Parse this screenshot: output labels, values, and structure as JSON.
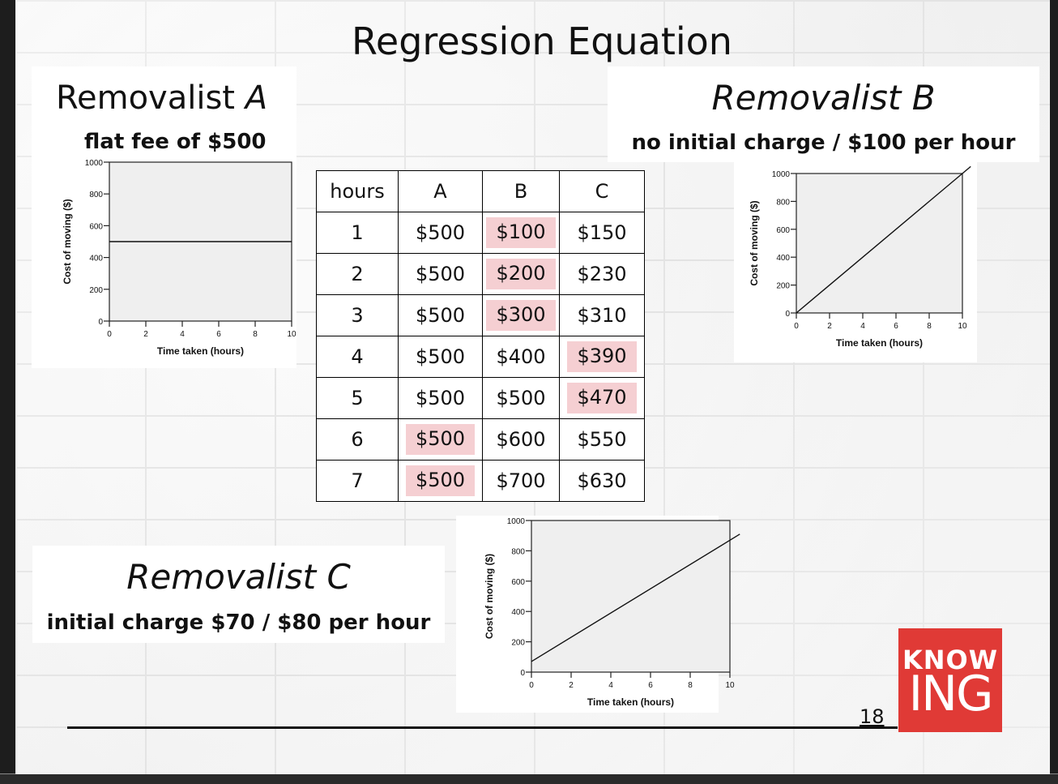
{
  "title": "Regression Equation",
  "removalist_a": {
    "heading": "Removalist A",
    "sub": "flat fee of $500"
  },
  "removalist_b": {
    "heading": "Removalist B",
    "sub": "no initial charge / $100 per hour"
  },
  "removalist_c": {
    "heading": "Removalist C",
    "sub": "initial charge $70 / $80 per hour"
  },
  "table": {
    "headers": [
      "hours",
      "A",
      "B",
      "C"
    ],
    "rows": [
      [
        "1",
        "$500",
        "$100",
        "$150"
      ],
      [
        "2",
        "$500",
        "$200",
        "$230"
      ],
      [
        "3",
        "$500",
        "$300",
        "$310"
      ],
      [
        "4",
        "$500",
        "$400",
        "$390"
      ],
      [
        "5",
        "$500",
        "$500",
        "$470"
      ],
      [
        "6",
        "$500",
        "$600",
        "$550"
      ],
      [
        "7",
        "$500",
        "$700",
        "$630"
      ]
    ],
    "highlighted_cells": [
      [
        0,
        2
      ],
      [
        1,
        2
      ],
      [
        2,
        2
      ],
      [
        3,
        3
      ],
      [
        4,
        3
      ],
      [
        5,
        1
      ],
      [
        6,
        1
      ]
    ],
    "highlight_color": "#f5cfd2"
  },
  "chart_data": [
    {
      "type": "line",
      "xlabel": "Time taken (hours)",
      "ylabel": "Cost of moving ($)",
      "xlim": [
        0,
        10
      ],
      "ylim": [
        0,
        1000
      ],
      "xticks": [
        "0",
        "2",
        "4",
        "6",
        "8",
        "10"
      ],
      "yticks": [
        "0",
        "200",
        "400",
        "600",
        "800",
        "1000"
      ],
      "x": [
        0,
        10
      ],
      "y": [
        500,
        500
      ],
      "plot_bg": "#efefef"
    },
    {
      "type": "line",
      "xlabel": "Time taken (hours)",
      "ylabel": "Cost of moving ($)",
      "xlim": [
        0,
        10
      ],
      "ylim": [
        0,
        1000
      ],
      "xticks": [
        "0",
        "2",
        "4",
        "6",
        "8",
        "10"
      ],
      "yticks": [
        "0",
        "200",
        "400",
        "600",
        "800",
        "1000"
      ],
      "x": [
        0,
        10.5
      ],
      "y": [
        0,
        1050
      ],
      "plot_bg": "#efefef"
    },
    {
      "type": "line",
      "xlabel": "Time taken (hours)",
      "ylabel": "Cost of moving ($)",
      "xlim": [
        0,
        10
      ],
      "ylim": [
        0,
        1000
      ],
      "xticks": [
        "0",
        "2",
        "4",
        "6",
        "8",
        "10"
      ],
      "yticks": [
        "0",
        "200",
        "400",
        "600",
        "800",
        "1000"
      ],
      "x": [
        0,
        10.5
      ],
      "y": [
        70,
        910
      ],
      "plot_bg": "#efefef"
    }
  ],
  "footer": {
    "page_number": "18",
    "logo_line1": "KNOW",
    "logo_line2": "ING",
    "logo_color": "#e03a36"
  }
}
